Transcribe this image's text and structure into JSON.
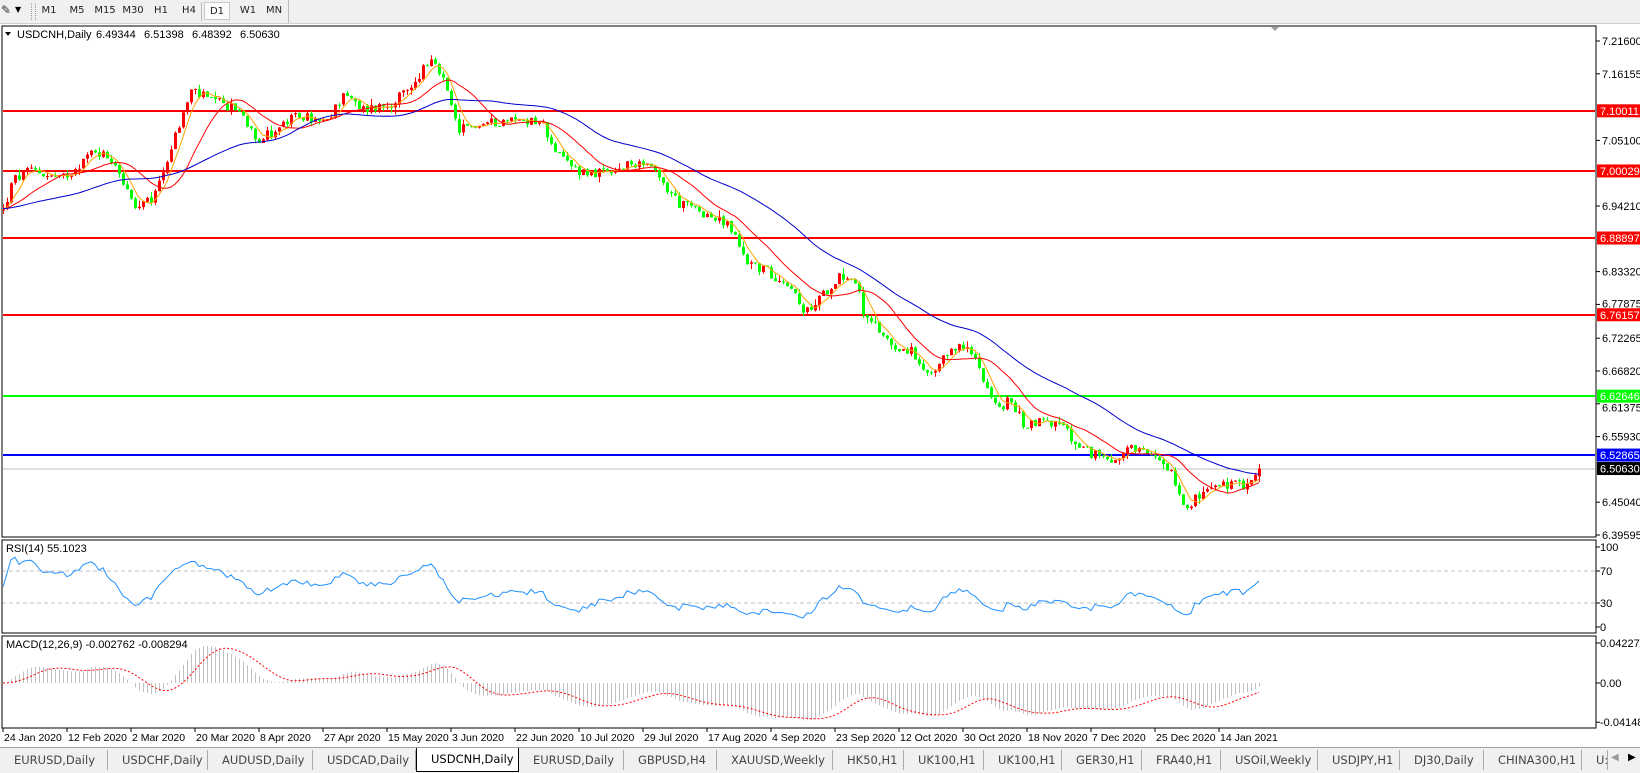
{
  "toolbar": {
    "timeframes": [
      "M1",
      "M5",
      "M15",
      "M30",
      "H1",
      "H4",
      "D1",
      "W1",
      "MN"
    ],
    "active": "D1"
  },
  "chart": {
    "symbol_title": "USDCNH,Daily",
    "ohlc": [
      "6.49344",
      "6.51398",
      "6.48392",
      "6.50630"
    ],
    "candle_colors": {
      "up": "#ff0000",
      "down": "#00ff00"
    },
    "ma_colors": [
      "#ffa500",
      "#ff0000",
      "#0000cd"
    ],
    "price_ticks": [
      "7.21600",
      "7.16155",
      "7.05100",
      "6.94210",
      "6.83320",
      "6.77875",
      "6.72265",
      "6.66820",
      "6.61375",
      "6.55930",
      "6.45040",
      "6.39595"
    ],
    "levels": [
      {
        "price": "7.10011",
        "color": "#ff0000",
        "label_bg": "#ff0000",
        "label_fg": "#ffffff"
      },
      {
        "price": "7.00029",
        "color": "#ff0000",
        "label_bg": "#ff0000",
        "label_fg": "#ffffff"
      },
      {
        "price": "6.88897",
        "color": "#ff0000",
        "label_bg": "#ff0000",
        "label_fg": "#ffffff"
      },
      {
        "price": "6.76157",
        "color": "#ff0000",
        "label_bg": "#ff0000",
        "label_fg": "#ffffff"
      },
      {
        "price": "6.62646",
        "color": "#00ff00",
        "label_bg": "#00ff00",
        "label_fg": "#ffffff"
      },
      {
        "price": "6.52865",
        "color": "#0000ff",
        "label_bg": "#0000ff",
        "label_fg": "#ffffff"
      },
      {
        "price": "6.50630",
        "color": "#c0c0c0",
        "label_bg": "#000000",
        "label_fg": "#ffffff"
      }
    ],
    "price_path": [
      {
        "date": "24 Jan 2020",
        "close": 6.935
      },
      {
        "date": "27 Jan 2020",
        "close": 6.985
      },
      {
        "date": "2 Feb 2020",
        "close": 7.002
      },
      {
        "date": "10 Feb 2020",
        "close": 6.985
      },
      {
        "date": "20 Feb 2020",
        "close": 7.035
      },
      {
        "date": "26 Feb 2020",
        "close": 7.018
      },
      {
        "date": "3 Mar 2020",
        "close": 6.935
      },
      {
        "date": "8 Mar 2020",
        "close": 6.952
      },
      {
        "date": "13 Mar 2020",
        "close": 7.035
      },
      {
        "date": "19 Mar 2020",
        "close": 7.135
      },
      {
        "date": "24 Mar 2020",
        "close": 7.118
      },
      {
        "date": "2 Apr 2020",
        "close": 7.101
      },
      {
        "date": "8 Apr 2020",
        "close": 7.052
      },
      {
        "date": "15 Apr 2020",
        "close": 7.077
      },
      {
        "date": "20 Apr 2020",
        "close": 7.093
      },
      {
        "date": "28 Apr 2020",
        "close": 7.077
      },
      {
        "date": "3 May 2020",
        "close": 7.135
      },
      {
        "date": "7 May 2020",
        "close": 7.101
      },
      {
        "date": "15 May 2020",
        "close": 7.11
      },
      {
        "date": "22 May 2020",
        "close": 7.135
      },
      {
        "date": "27 May 2020",
        "close": 7.184
      },
      {
        "date": "31 May 2020",
        "close": 7.16
      },
      {
        "date": "5 Jun 2020",
        "close": 7.068
      },
      {
        "date": "11 Jun 2020",
        "close": 7.077
      },
      {
        "date": "20 Jun 2020",
        "close": 7.085
      },
      {
        "date": "29 Jun 2020",
        "close": 7.085
      },
      {
        "date": "5 Jul 2020",
        "close": 7.018
      },
      {
        "date": "10 Jul 2020",
        "close": 7.002
      },
      {
        "date": "19 Jul 2020",
        "close": 6.994
      },
      {
        "date": "25 Jul 2020",
        "close": 7.01
      },
      {
        "date": "29 Jul 2020",
        "close": 7.018
      },
      {
        "date": "3 Aug 2020",
        "close": 6.985
      },
      {
        "date": "9 Aug 2020",
        "close": 6.944
      },
      {
        "date": "15 Aug 2020",
        "close": 6.935
      },
      {
        "date": "19 Aug 2020",
        "close": 6.919
      },
      {
        "date": "23 Aug 2020",
        "close": 6.911
      },
      {
        "date": "28 Aug 2020",
        "close": 6.852
      },
      {
        "date": "2 Sep 2020",
        "close": 6.836
      },
      {
        "date": "10 Sep 2020",
        "close": 6.811
      },
      {
        "date": "13 Sep 2020",
        "close": 6.761
      },
      {
        "date": "17 Sep 2020",
        "close": 6.778
      },
      {
        "date": "24 Sep 2020",
        "close": 6.828
      },
      {
        "date": "29 Sep 2020",
        "close": 6.819
      },
      {
        "date": "2 Oct 2020",
        "close": 6.753
      },
      {
        "date": "6 Oct 2020",
        "close": 6.736
      },
      {
        "date": "10 Oct 2020",
        "close": 6.711
      },
      {
        "date": "15 Oct 2020",
        "close": 6.703
      },
      {
        "date": "19 Oct 2020",
        "close": 6.662
      },
      {
        "date": "22 Oct 2020",
        "close": 6.662
      },
      {
        "date": "27 Oct 2020",
        "close": 6.711
      },
      {
        "date": "31 Oct 2020",
        "close": 6.703
      },
      {
        "date": "3 Nov 2020",
        "close": 6.686
      },
      {
        "date": "6 Nov 2020",
        "close": 6.645
      },
      {
        "date": "9 Nov 2020",
        "close": 6.603
      },
      {
        "date": "13 Nov 2020",
        "close": 6.62
      },
      {
        "date": "17 Nov 2020",
        "close": 6.579
      },
      {
        "date": "23 Nov 2020",
        "close": 6.587
      },
      {
        "date": "29 Nov 2020",
        "close": 6.574
      },
      {
        "date": "3 Dec 2020",
        "close": 6.537
      },
      {
        "date": "9 Dec 2020",
        "close": 6.529
      },
      {
        "date": "14 Dec 2020",
        "close": 6.521
      },
      {
        "date": "18 Dec 2020",
        "close": 6.537
      },
      {
        "date": "22 Dec 2020",
        "close": 6.529
      },
      {
        "date": "27 Dec 2020",
        "close": 6.521
      },
      {
        "date": "30 Dec 2020",
        "close": 6.504
      },
      {
        "date": "3 Jan 2021",
        "close": 6.446
      },
      {
        "date": "8 Jan 2021",
        "close": 6.459
      },
      {
        "date": "10 Jan 2021",
        "close": 6.471
      },
      {
        "date": "15 Jan 2021",
        "close": 6.479
      },
      {
        "date": "21 Jan 2021",
        "close": 6.479
      },
      {
        "date": "24 Jan 2021",
        "close": 6.487
      },
      {
        "date": "27 Jan 2021",
        "close": 6.5063
      }
    ]
  },
  "rsi": {
    "label": "RSI(14) 55.1023",
    "ticks": [
      "100",
      "70",
      "30",
      "0"
    ],
    "color": "#1e90ff"
  },
  "macd": {
    "label": "MACD(12,26,9) -0.002762 -0.008294",
    "ticks": [
      "0.042275",
      "0.00",
      "-0.04148"
    ],
    "histogram_color": "#c0c0c0",
    "signal_color": "#ff0000"
  },
  "date_axis": [
    "24 Jan 2020",
    "12 Feb 2020",
    "2 Mar 2020",
    "20 Mar 2020",
    "8 Apr 2020",
    "27 Apr 2020",
    "15 May 2020",
    "3 Jun 2020",
    "22 Jun 2020",
    "10 Jul 2020",
    "29 Jul 2020",
    "17 Aug 2020",
    "4 Sep 2020",
    "23 Sep 2020",
    "12 Oct 2020",
    "30 Oct 2020",
    "18 Nov 2020",
    "7 Dec 2020",
    "25 Dec 2020",
    "14 Jan 2021"
  ],
  "tabs": [
    "EURUSD,Daily",
    "USDCHF,Daily",
    "AUDUSD,Daily",
    "USDCAD,Daily",
    "USDCNH,Daily",
    "EURUSD,Daily",
    "GBPUSD,H4",
    "XAUUSD,Weekly",
    "HK50,H1",
    "UK100,H1",
    "UK100,H1",
    "GER30,H1",
    "FRA40,H1",
    "USOil,Weekly",
    "USDJPY,H1",
    "DJ30,Daily",
    "CHINA300,H1",
    "U:"
  ],
  "active_tab": "USDCNH,Daily"
}
